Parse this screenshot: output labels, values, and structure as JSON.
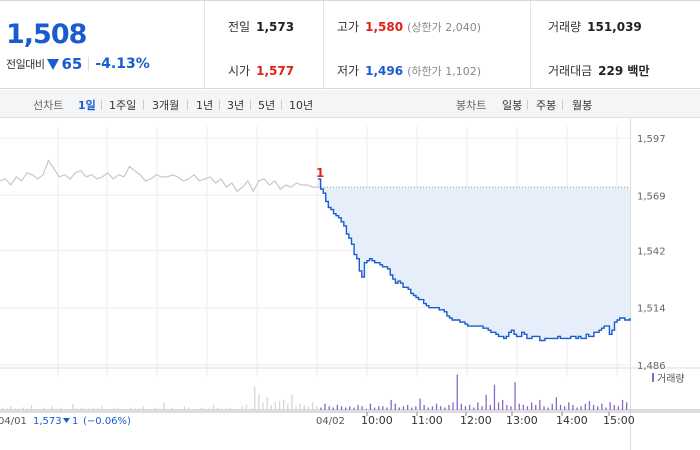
{
  "quote": {
    "price": "1,508",
    "change_label": "전일대비",
    "change": "65",
    "change_pct": "-4.13%",
    "direction": "down"
  },
  "stats": {
    "prev_close": {
      "label": "전일",
      "value": "1,573"
    },
    "high": {
      "label": "고가",
      "value": "1,580",
      "note": "(상한가 2,040)"
    },
    "volume": {
      "label": "거래량",
      "value": "151,039"
    },
    "open": {
      "label": "시가",
      "value": "1,577"
    },
    "low": {
      "label": "저가",
      "value": "1,496",
      "note": "(하한가 1,102)"
    },
    "amount": {
      "label": "거래대금",
      "value": "229 백만"
    }
  },
  "toolbar": {
    "line_label": "선차트",
    "ranges": [
      "1일",
      "1주일",
      "3개월",
      "1년",
      "3년",
      "5년",
      "10년"
    ],
    "active_range": "1일",
    "candle_label": "봉차트",
    "candles": [
      "일봉",
      "주봉",
      "월봉"
    ]
  },
  "colors": {
    "up": "#e0201c",
    "down": "#1a5ccf",
    "area_fill": "#e6eefa",
    "prev_line": "#c8c8c8",
    "volume": "#8a68c8"
  },
  "chart_data": {
    "type": "line",
    "y_ticks": [
      "1,597",
      "1,569",
      "1,542",
      "1,514",
      "1,486"
    ],
    "ylim": [
      1486,
      1597
    ],
    "prev_close_ref": 1573,
    "prev_day": {
      "date": "04/01",
      "close": "1,573",
      "change": "1",
      "change_pct": "(−0.06%)",
      "series": [
        1576,
        1577,
        1574,
        1578,
        1576,
        1580,
        1579,
        1577,
        1579,
        1586,
        1582,
        1578,
        1579,
        1577,
        1580,
        1581,
        1578,
        1579,
        1577,
        1578,
        1580,
        1577,
        1579,
        1578,
        1583,
        1581,
        1579,
        1576,
        1577,
        1579,
        1578,
        1578,
        1579,
        1578,
        1576,
        1577,
        1579,
        1576,
        1577,
        1578,
        1575,
        1577,
        1573,
        1575,
        1571,
        1573,
        1576,
        1571,
        1576,
        1577,
        1574,
        1576,
        1572,
        1574,
        1573,
        1575,
        1574,
        1574,
        1573,
        1573
      ]
    },
    "today": {
      "date": "04/02",
      "start_marker": "1",
      "x_labels": [
        "10:00",
        "11:00",
        "12:00",
        "13:00",
        "14:00",
        "15:00"
      ],
      "series": [
        1577,
        1572,
        1570,
        1566,
        1563,
        1562,
        1560,
        1559,
        1558,
        1556,
        1554,
        1550,
        1548,
        1545,
        1540,
        1538,
        1532,
        1529,
        1536,
        1537,
        1538,
        1537,
        1536,
        1536,
        1535,
        1534,
        1534,
        1533,
        1530,
        1528,
        1526,
        1527,
        1526,
        1524,
        1524,
        1523,
        1521,
        1520,
        1519,
        1518,
        1518,
        1516,
        1515,
        1514,
        1514,
        1514,
        1514,
        1513,
        1513,
        1512,
        1510,
        1509,
        1508,
        1508,
        1508,
        1507,
        1507,
        1506,
        1505,
        1505,
        1505,
        1505,
        1505,
        1505,
        1504,
        1504,
        1503,
        1502,
        1502,
        1501,
        1500,
        1500,
        1499,
        1500,
        1502,
        1503,
        1501,
        1500,
        1500,
        1502,
        1501,
        1499,
        1499,
        1500,
        1500,
        1500,
        1498,
        1498,
        1499,
        1499,
        1499,
        1499,
        1499,
        1500,
        1499,
        1499,
        1499,
        1499,
        1500,
        1500,
        1499,
        1500,
        1499,
        1499,
        1501,
        1500,
        1500,
        1502,
        1502,
        1503,
        1504,
        1505,
        1505,
        1501,
        1503,
        1507,
        1508,
        1509,
        1509,
        1508,
        1508,
        1509
      ]
    },
    "volume_legend": "거래량",
    "volume_bars": [
      2,
      1,
      3,
      1,
      1,
      2,
      1,
      4,
      1,
      1,
      2,
      1,
      3,
      1,
      2,
      1,
      1,
      5,
      1,
      2,
      1,
      1,
      2,
      1,
      3,
      1,
      1,
      2,
      1,
      1,
      1,
      2,
      1,
      1,
      3,
      1,
      1,
      2,
      1,
      6,
      1,
      2,
      1,
      1,
      3,
      2,
      1,
      1,
      2,
      1,
      1,
      4,
      2,
      1,
      1,
      2,
      1,
      1,
      3,
      4,
      1,
      18,
      12,
      6,
      10,
      4,
      6,
      7,
      8,
      5,
      12,
      3,
      5,
      4,
      3,
      6,
      3,
      2,
      5,
      3,
      2,
      4,
      3,
      2,
      3,
      2,
      4,
      3,
      1,
      5,
      2,
      3,
      3,
      2,
      8,
      5,
      2,
      3,
      4,
      2,
      3,
      9,
      4,
      2,
      3,
      5,
      3,
      2,
      4,
      6,
      28,
      5,
      3,
      4,
      2,
      6,
      3,
      12,
      4,
      20,
      6,
      8,
      4,
      3,
      22,
      5,
      4,
      3,
      6,
      4,
      8,
      3,
      2,
      5,
      10,
      4,
      3,
      6,
      4,
      2,
      3,
      5,
      7,
      4,
      3,
      5,
      2,
      6,
      4,
      3,
      8,
      6
    ]
  }
}
